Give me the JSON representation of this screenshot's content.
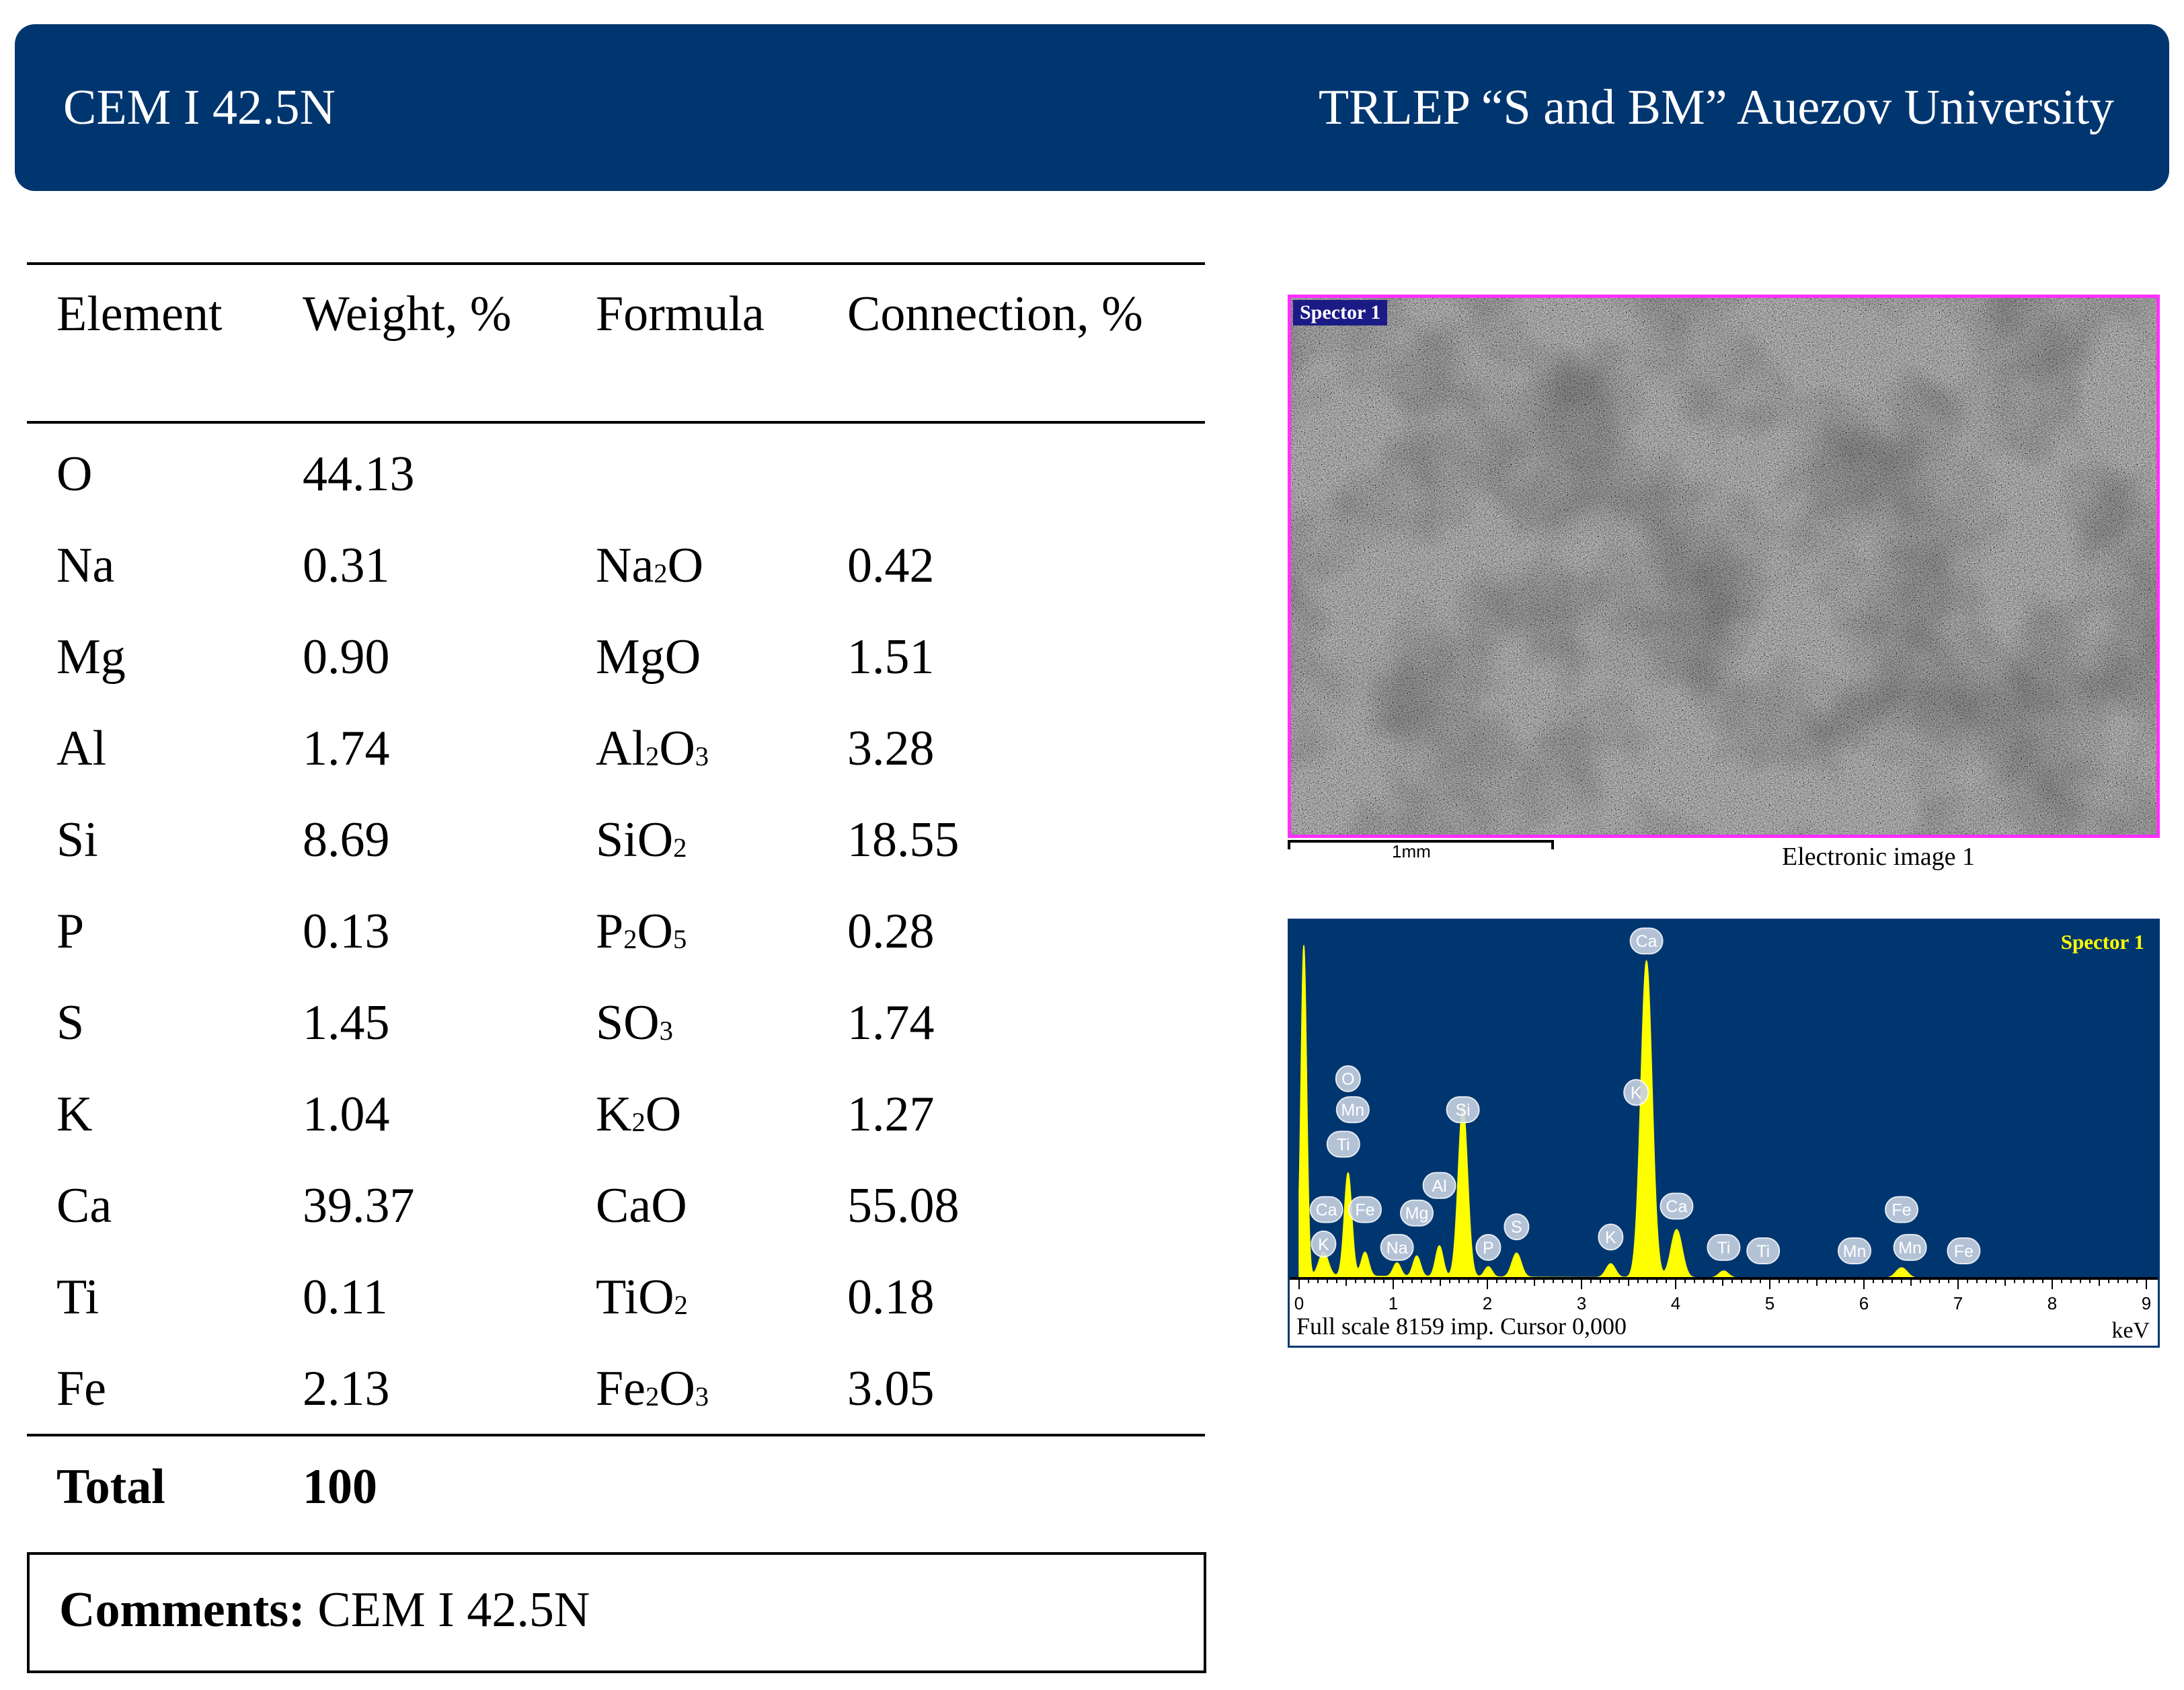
{
  "header": {
    "left_title": "CEM I 42.5N",
    "right_title": "TRLEP “S and BM” Auezov University"
  },
  "table": {
    "columns": [
      "Element",
      "Weight, %",
      "Formula",
      "Connection, %"
    ],
    "rows": [
      {
        "element": "O",
        "weight": "44.13",
        "formula": [],
        "connection": ""
      },
      {
        "element": "Na",
        "weight": "0.31",
        "formula": [
          [
            "Na",
            ""
          ],
          [
            "2",
            "sub"
          ],
          [
            "O",
            ""
          ]
        ],
        "connection": "0.42"
      },
      {
        "element": "Mg",
        "weight": "0.90",
        "formula": [
          [
            "MgO",
            ""
          ]
        ],
        "connection": "1.51"
      },
      {
        "element": "Al",
        "weight": "1.74",
        "formula": [
          [
            "Al",
            ""
          ],
          [
            "2",
            "sub"
          ],
          [
            "O",
            ""
          ],
          [
            "3",
            "sub"
          ]
        ],
        "connection": "3.28"
      },
      {
        "element": "Si",
        "weight": "8.69",
        "formula": [
          [
            "SiO",
            ""
          ],
          [
            "2",
            "sub"
          ]
        ],
        "connection": "18.55"
      },
      {
        "element": "P",
        "weight": "0.13",
        "formula": [
          [
            "P",
            ""
          ],
          [
            "2",
            "sub"
          ],
          [
            "O",
            ""
          ],
          [
            "5",
            "sub"
          ]
        ],
        "connection": "0.28"
      },
      {
        "element": "S",
        "weight": "1.45",
        "formula": [
          [
            "SO",
            ""
          ],
          [
            "3",
            "sub"
          ]
        ],
        "connection": "1.74"
      },
      {
        "element": "K",
        "weight": "1.04",
        "formula": [
          [
            "K",
            ""
          ],
          [
            "2",
            "sub"
          ],
          [
            "O",
            ""
          ]
        ],
        "connection": "1.27"
      },
      {
        "element": "Ca",
        "weight": "39.37",
        "formula": [
          [
            "CaO",
            ""
          ]
        ],
        "connection": "55.08"
      },
      {
        "element": "Ti",
        "weight": "0.11",
        "formula": [
          [
            "TiO",
            ""
          ],
          [
            "2",
            "sub"
          ]
        ],
        "connection": "0.18"
      },
      {
        "element": "Fe",
        "weight": "2.13",
        "formula": [
          [
            "Fe",
            ""
          ],
          [
            "2",
            "sub"
          ],
          [
            "O",
            ""
          ],
          [
            "3",
            "sub"
          ]
        ],
        "connection": "3.05"
      }
    ],
    "total": {
      "label": "Total",
      "value": "100"
    }
  },
  "comments": {
    "label": "Comments:",
    "text": " CEM I 42.5N"
  },
  "sem_image": {
    "tag": "Spector 1",
    "scale_label": "1mm",
    "caption": "Electronic image 1",
    "frame_color": "#ff2fff"
  },
  "spectrum": {
    "tag": "Spector 1",
    "footer": "Full scale 8159 imp. Cursor 0,000",
    "unit": "keV",
    "background_color": "#003670",
    "trace_color": "#ffff00",
    "x_range": [
      0,
      9
    ],
    "x_ticks": [
      "0",
      "1",
      "2",
      "3",
      "4",
      "5",
      "6",
      "7",
      "8",
      "9"
    ],
    "peaks": [
      {
        "kev": 0.05,
        "height": 0.96,
        "width": 0.03
      },
      {
        "kev": 0.26,
        "height": 0.07,
        "width": 0.05
      },
      {
        "kev": 0.52,
        "height": 0.3,
        "width": 0.04
      },
      {
        "kev": 0.7,
        "height": 0.07,
        "width": 0.04
      },
      {
        "kev": 1.04,
        "height": 0.04,
        "width": 0.04
      },
      {
        "kev": 1.25,
        "height": 0.06,
        "width": 0.04
      },
      {
        "kev": 1.49,
        "height": 0.09,
        "width": 0.04
      },
      {
        "kev": 1.74,
        "height": 0.5,
        "width": 0.05
      },
      {
        "kev": 2.01,
        "height": 0.03,
        "width": 0.04
      },
      {
        "kev": 2.31,
        "height": 0.07,
        "width": 0.05
      },
      {
        "kev": 3.31,
        "height": 0.04,
        "width": 0.05
      },
      {
        "kev": 3.69,
        "height": 0.92,
        "width": 0.06
      },
      {
        "kev": 4.01,
        "height": 0.14,
        "width": 0.06
      },
      {
        "kev": 4.51,
        "height": 0.02,
        "width": 0.05
      },
      {
        "kev": 6.4,
        "height": 0.03,
        "width": 0.06
      }
    ],
    "labels": [
      {
        "text": "Ca",
        "kev": 3.69,
        "level": 0.98
      },
      {
        "text": "O",
        "kev": 0.52,
        "level": 0.58
      },
      {
        "text": "Mn",
        "kev": 0.57,
        "level": 0.49
      },
      {
        "text": "Ti",
        "kev": 0.47,
        "level": 0.39
      },
      {
        "text": "Si",
        "kev": 1.74,
        "level": 0.49
      },
      {
        "text": "K",
        "kev": 3.58,
        "level": 0.54
      },
      {
        "text": "Al",
        "kev": 1.49,
        "level": 0.27
      },
      {
        "text": "Mg",
        "kev": 1.25,
        "level": 0.19
      },
      {
        "text": "Ca",
        "kev": 0.29,
        "level": 0.2
      },
      {
        "text": "Fe",
        "kev": 0.7,
        "level": 0.2
      },
      {
        "text": "K",
        "kev": 0.26,
        "level": 0.1
      },
      {
        "text": "Na",
        "kev": 1.04,
        "level": 0.09
      },
      {
        "text": "P",
        "kev": 2.01,
        "level": 0.09
      },
      {
        "text": "S",
        "kev": 2.31,
        "level": 0.15
      },
      {
        "text": "K",
        "kev": 3.31,
        "level": 0.12
      },
      {
        "text": "Ca",
        "kev": 4.01,
        "level": 0.21
      },
      {
        "text": "Ti",
        "kev": 4.51,
        "level": 0.09
      },
      {
        "text": "Ti",
        "kev": 4.93,
        "level": 0.08
      },
      {
        "text": "Mn",
        "kev": 5.9,
        "level": 0.08
      },
      {
        "text": "Fe",
        "kev": 6.4,
        "level": 0.2
      },
      {
        "text": "Mn",
        "kev": 6.49,
        "level": 0.09
      },
      {
        "text": "Fe",
        "kev": 7.06,
        "level": 0.08
      }
    ]
  }
}
